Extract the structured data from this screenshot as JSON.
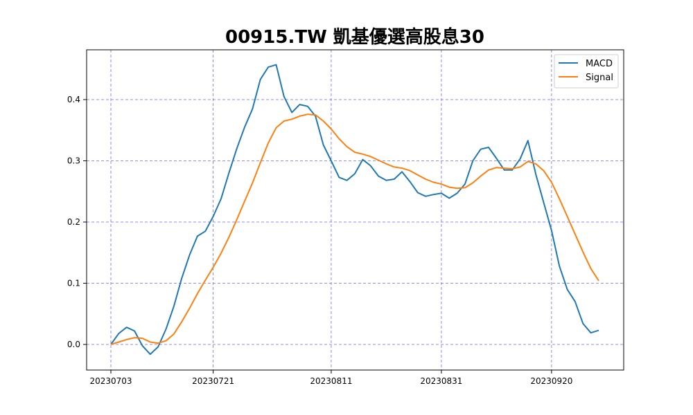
{
  "chart_data": {
    "type": "line",
    "title": "00915.TW 凱基優選高股息30",
    "xlabel": "",
    "ylabel": "",
    "x_ticks": [
      "20230703",
      "20230721",
      "20230811",
      "20230831",
      "20230920"
    ],
    "y_ticks": [
      "0.0",
      "0.1",
      "0.2",
      "0.3",
      "0.4"
    ],
    "ylim": [
      -0.04,
      0.48
    ],
    "grid": true,
    "legend_position": "top-right",
    "series": [
      {
        "name": "MACD",
        "color": "#1f77b4",
        "values": [
          0.0,
          0.018,
          0.028,
          0.022,
          -0.002,
          -0.016,
          -0.004,
          0.025,
          0.062,
          0.108,
          0.146,
          0.177,
          0.185,
          0.209,
          0.238,
          0.28,
          0.32,
          0.355,
          0.385,
          0.433,
          0.453,
          0.457,
          0.405,
          0.379,
          0.392,
          0.389,
          0.373,
          0.326,
          0.3,
          0.273,
          0.268,
          0.279,
          0.302,
          0.292,
          0.275,
          0.268,
          0.27,
          0.282,
          0.266,
          0.248,
          0.242,
          0.245,
          0.247,
          0.239,
          0.247,
          0.262,
          0.3,
          0.319,
          0.322,
          0.304,
          0.285,
          0.285,
          0.303,
          0.333,
          0.278,
          0.232,
          0.186,
          0.128,
          0.09,
          0.07,
          0.034,
          0.019,
          0.023
        ]
      },
      {
        "name": "Signal",
        "color": "#ff7f0e",
        "values": [
          0.0,
          0.004,
          0.008,
          0.011,
          0.01,
          0.004,
          0.002,
          0.006,
          0.017,
          0.037,
          0.059,
          0.083,
          0.105,
          0.126,
          0.149,
          0.175,
          0.204,
          0.234,
          0.264,
          0.297,
          0.329,
          0.354,
          0.365,
          0.368,
          0.373,
          0.376,
          0.375,
          0.365,
          0.352,
          0.336,
          0.323,
          0.314,
          0.311,
          0.307,
          0.301,
          0.295,
          0.29,
          0.288,
          0.284,
          0.277,
          0.27,
          0.265,
          0.262,
          0.257,
          0.255,
          0.256,
          0.264,
          0.275,
          0.285,
          0.289,
          0.288,
          0.287,
          0.29,
          0.299,
          0.295,
          0.284,
          0.265,
          0.238,
          0.209,
          0.18,
          0.151,
          0.124,
          0.104
        ]
      }
    ]
  }
}
